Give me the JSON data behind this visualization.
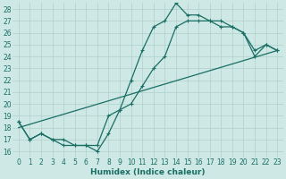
{
  "xlabel": "Humidex (Indice chaleur)",
  "ylabel": "",
  "background_color": "#cde8e5",
  "grid_color": "#b0d0cc",
  "line_color": "#1a6e64",
  "xlim": [
    -0.5,
    23.5
  ],
  "ylim": [
    15.5,
    28.5
  ],
  "yticks": [
    16,
    17,
    18,
    19,
    20,
    21,
    22,
    23,
    24,
    25,
    26,
    27,
    28
  ],
  "xticks": [
    0,
    1,
    2,
    3,
    4,
    5,
    6,
    7,
    8,
    9,
    10,
    11,
    12,
    13,
    14,
    15,
    16,
    17,
    18,
    19,
    20,
    21,
    22,
    23
  ],
  "line1_x": [
    0,
    1,
    2,
    3,
    4,
    5,
    6,
    7,
    8,
    9,
    10,
    11,
    12,
    13,
    14,
    15,
    16,
    17,
    18,
    19,
    20,
    21,
    22,
    23
  ],
  "line1_y": [
    18.5,
    17,
    17.5,
    17,
    16.5,
    16.5,
    16.5,
    16,
    17.5,
    19.5,
    22,
    24.5,
    26.5,
    27,
    28.5,
    27.5,
    27.5,
    27,
    27,
    26.5,
    26,
    24.5,
    25,
    24.5
  ],
  "line2_x": [
    0,
    1,
    2,
    3,
    4,
    5,
    6,
    7,
    8,
    9,
    10,
    11,
    12,
    13,
    14,
    15,
    16,
    17,
    18,
    19,
    20,
    21,
    22,
    23
  ],
  "line2_y": [
    18.5,
    17,
    17.5,
    17,
    17,
    16.5,
    16.5,
    16.5,
    19,
    19.5,
    20,
    21.5,
    23,
    24,
    26.5,
    27,
    27,
    27,
    26.5,
    26.5,
    26,
    24,
    25,
    24.5
  ],
  "line3_x": [
    0,
    23
  ],
  "line3_y": [
    18.0,
    24.5
  ]
}
